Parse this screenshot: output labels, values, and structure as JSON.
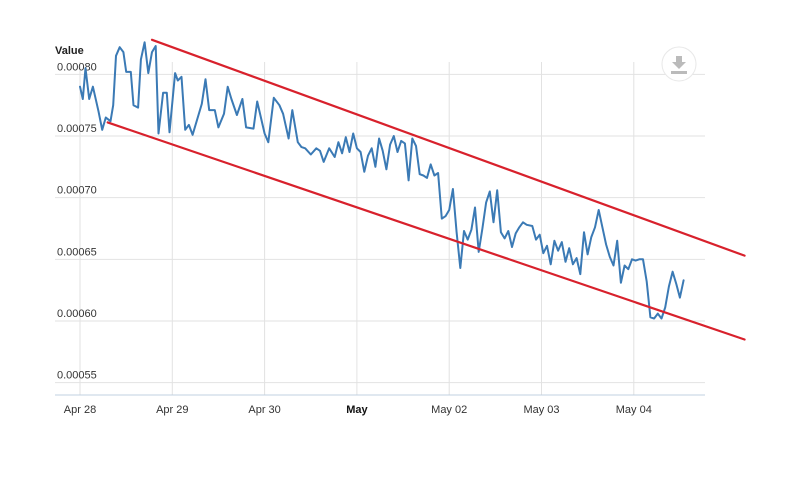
{
  "colors": {
    "price_line": "#3b7ab5",
    "trend_lines": "#d8212c",
    "grid": "#e2e2e2",
    "download_icon": "#bbbbbb"
  },
  "export_button": {
    "icon": "download-icon"
  },
  "chart_data": {
    "type": "line",
    "title": "",
    "xlabel": "",
    "ylabel": "Value",
    "x_ticks": [
      {
        "label": "Apr 28",
        "bold": false
      },
      {
        "label": "Apr 29",
        "bold": false
      },
      {
        "label": "Apr 30",
        "bold": false
      },
      {
        "label": "May",
        "bold": true
      },
      {
        "label": "May 02",
        "bold": false
      },
      {
        "label": "May 03",
        "bold": false
      },
      {
        "label": "May 04",
        "bold": false
      }
    ],
    "y_ticks": [
      "0.00055",
      "0.00060",
      "0.00065",
      "0.00070",
      "0.00075",
      "0.00080"
    ],
    "xlim": [
      -0.03,
      6.25
    ],
    "ylim": [
      0.00054,
      0.00081
    ],
    "grid": true,
    "series": [
      {
        "values": [
          [
            0.0,
            0.00079
          ],
          [
            0.03,
            0.00078
          ],
          [
            0.06,
            0.000805
          ],
          [
            0.1,
            0.00078
          ],
          [
            0.14,
            0.00079
          ],
          [
            0.2,
            0.00077
          ],
          [
            0.24,
            0.000755
          ],
          [
            0.28,
            0.000765
          ],
          [
            0.33,
            0.000762
          ],
          [
            0.36,
            0.000775
          ],
          [
            0.39,
            0.000815
          ],
          [
            0.43,
            0.000822
          ],
          [
            0.47,
            0.000818
          ],
          [
            0.5,
            0.000802
          ],
          [
            0.55,
            0.000802
          ],
          [
            0.58,
            0.000775
          ],
          [
            0.63,
            0.000773
          ],
          [
            0.66,
            0.000812
          ],
          [
            0.7,
            0.000826
          ],
          [
            0.74,
            0.000801
          ],
          [
            0.78,
            0.000818
          ],
          [
            0.82,
            0.000823
          ],
          [
            0.85,
            0.000752
          ],
          [
            0.9,
            0.000785
          ],
          [
            0.94,
            0.000785
          ],
          [
            0.97,
            0.000753
          ],
          [
            1.03,
            0.000801
          ],
          [
            1.06,
            0.000795
          ],
          [
            1.1,
            0.000798
          ],
          [
            1.14,
            0.000755
          ],
          [
            1.18,
            0.000759
          ],
          [
            1.22,
            0.000751
          ],
          [
            1.32,
            0.000776
          ],
          [
            1.36,
            0.000796
          ],
          [
            1.4,
            0.000771
          ],
          [
            1.46,
            0.000771
          ],
          [
            1.5,
            0.000757
          ],
          [
            1.56,
            0.000768
          ],
          [
            1.6,
            0.00079
          ],
          [
            1.64,
            0.00078
          ],
          [
            1.7,
            0.000767
          ],
          [
            1.76,
            0.00078
          ],
          [
            1.8,
            0.000757
          ],
          [
            1.88,
            0.000756
          ],
          [
            1.92,
            0.000778
          ],
          [
            2.0,
            0.000752
          ],
          [
            2.04,
            0.000745
          ],
          [
            2.1,
            0.000781
          ],
          [
            2.16,
            0.000775
          ],
          [
            2.2,
            0.000768
          ],
          [
            2.26,
            0.000748
          ],
          [
            2.3,
            0.000771
          ],
          [
            2.36,
            0.000745
          ],
          [
            2.4,
            0.000741
          ],
          [
            2.44,
            0.00074
          ],
          [
            2.5,
            0.000735
          ],
          [
            2.56,
            0.00074
          ],
          [
            2.6,
            0.000738
          ],
          [
            2.64,
            0.000729
          ],
          [
            2.7,
            0.00074
          ],
          [
            2.76,
            0.000733
          ],
          [
            2.8,
            0.000745
          ],
          [
            2.84,
            0.000736
          ],
          [
            2.88,
            0.000749
          ],
          [
            2.92,
            0.000737
          ],
          [
            2.96,
            0.000752
          ],
          [
            3.0,
            0.00074
          ],
          [
            3.04,
            0.000737
          ],
          [
            3.08,
            0.000721
          ],
          [
            3.12,
            0.000734
          ],
          [
            3.16,
            0.00074
          ],
          [
            3.2,
            0.000725
          ],
          [
            3.24,
            0.000748
          ],
          [
            3.28,
            0.000738
          ],
          [
            3.32,
            0.000723
          ],
          [
            3.36,
            0.000743
          ],
          [
            3.4,
            0.00075
          ],
          [
            3.44,
            0.000737
          ],
          [
            3.48,
            0.000746
          ],
          [
            3.52,
            0.000744
          ],
          [
            3.56,
            0.000714
          ],
          [
            3.6,
            0.000748
          ],
          [
            3.64,
            0.000742
          ],
          [
            3.68,
            0.000719
          ],
          [
            3.72,
            0.000718
          ],
          [
            3.76,
            0.000716
          ],
          [
            3.8,
            0.000727
          ],
          [
            3.84,
            0.000718
          ],
          [
            3.88,
            0.00072
          ],
          [
            3.92,
            0.000683
          ],
          [
            3.96,
            0.000685
          ],
          [
            4.0,
            0.00069
          ],
          [
            4.04,
            0.000707
          ],
          [
            4.08,
            0.000672
          ],
          [
            4.12,
            0.000643
          ],
          [
            4.16,
            0.000673
          ],
          [
            4.2,
            0.000666
          ],
          [
            4.24,
            0.000674
          ],
          [
            4.28,
            0.000692
          ],
          [
            4.32,
            0.000656
          ],
          [
            4.36,
            0.000675
          ],
          [
            4.4,
            0.000696
          ],
          [
            4.44,
            0.000705
          ],
          [
            4.48,
            0.00068
          ],
          [
            4.52,
            0.000706
          ],
          [
            4.56,
            0.000672
          ],
          [
            4.6,
            0.000667
          ],
          [
            4.64,
            0.000673
          ],
          [
            4.68,
            0.00066
          ],
          [
            4.72,
            0.000671
          ],
          [
            4.76,
            0.000676
          ],
          [
            4.8,
            0.00068
          ],
          [
            4.84,
            0.000678
          ],
          [
            4.9,
            0.000677
          ],
          [
            4.94,
            0.000666
          ],
          [
            4.98,
            0.00067
          ],
          [
            5.02,
            0.000655
          ],
          [
            5.06,
            0.000661
          ],
          [
            5.1,
            0.000646
          ],
          [
            5.14,
            0.000665
          ],
          [
            5.18,
            0.000657
          ],
          [
            5.22,
            0.000664
          ],
          [
            5.26,
            0.000648
          ],
          [
            5.3,
            0.000659
          ],
          [
            5.34,
            0.000646
          ],
          [
            5.38,
            0.000651
          ],
          [
            5.42,
            0.000638
          ],
          [
            5.46,
            0.000672
          ],
          [
            5.5,
            0.000654
          ],
          [
            5.54,
            0.000668
          ],
          [
            5.58,
            0.000676
          ],
          [
            5.62,
            0.00069
          ],
          [
            5.66,
            0.000676
          ],
          [
            5.7,
            0.000662
          ],
          [
            5.74,
            0.000652
          ],
          [
            5.78,
            0.000645
          ],
          [
            5.82,
            0.000665
          ],
          [
            5.86,
            0.000631
          ],
          [
            5.9,
            0.000645
          ],
          [
            5.94,
            0.000642
          ],
          [
            5.98,
            0.00065
          ],
          [
            6.02,
            0.000649
          ],
          [
            6.06,
            0.00065
          ],
          [
            6.1,
            0.00065
          ],
          [
            6.14,
            0.000632
          ],
          [
            6.18,
            0.000603
          ],
          [
            6.22,
            0.000602
          ],
          [
            6.26,
            0.000606
          ],
          [
            6.3,
            0.000602
          ],
          [
            6.34,
            0.000611
          ],
          [
            6.38,
            0.000628
          ],
          [
            6.42,
            0.00064
          ],
          [
            6.46,
            0.00063
          ],
          [
            6.5,
            0.000619
          ],
          [
            6.54,
            0.000633
          ]
        ]
      }
    ],
    "trend_lines": [
      {
        "from": [
          0.78,
          0.000828
        ],
        "to": [
          7.2,
          0.000653
        ]
      },
      {
        "from": [
          0.3,
          0.000761
        ],
        "to": [
          7.2,
          0.000585
        ]
      }
    ]
  }
}
